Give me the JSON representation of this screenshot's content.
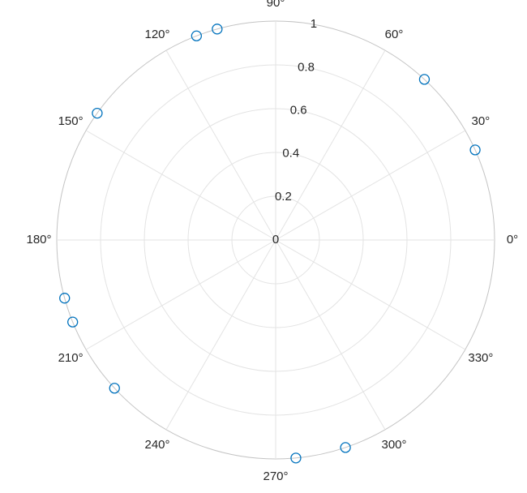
{
  "chart_data": {
    "type": "scatter",
    "polar": true,
    "color": "#0072bd",
    "grid": true,
    "theta": [
      24.3,
      47.2,
      105.5,
      111.2,
      144.6,
      195.4,
      202.0,
      222.6,
      275.3,
      288.6
    ],
    "r": [
      1,
      1,
      1,
      1,
      1,
      1,
      1,
      1,
      1,
      1
    ],
    "rlim": [
      0,
      1
    ],
    "rticks": [
      0,
      0.2,
      0.4,
      0.6,
      0.8,
      1
    ],
    "thetaticks": [
      {
        "value": 0,
        "label": "0°"
      },
      {
        "value": 30,
        "label": "30°"
      },
      {
        "value": 60,
        "label": "60°"
      },
      {
        "value": 90,
        "label": "90°"
      },
      {
        "value": 120,
        "label": "120°"
      },
      {
        "value": 150,
        "label": "150°"
      },
      {
        "value": 180,
        "label": "180°"
      },
      {
        "value": 210,
        "label": "210°"
      },
      {
        "value": 240,
        "label": "240°"
      },
      {
        "value": 270,
        "label": "270°"
      },
      {
        "value": 300,
        "label": "300°"
      },
      {
        "value": 330,
        "label": "330°"
      }
    ]
  }
}
